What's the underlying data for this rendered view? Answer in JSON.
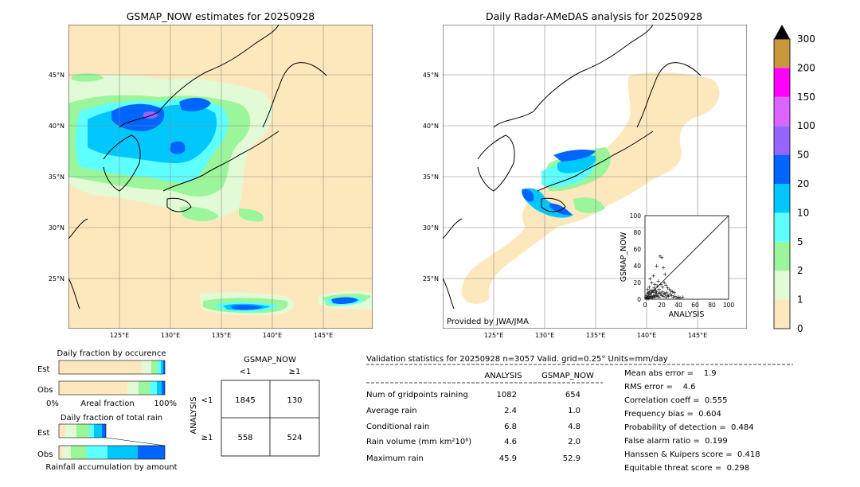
{
  "left_map": {
    "title": "GSMAP_NOW estimates for 20250928",
    "lat_labels": [
      "45°N",
      "40°N",
      "35°N",
      "30°N",
      "25°N"
    ],
    "lon_labels": [
      "125°E",
      "130°E",
      "135°E",
      "140°E",
      "145°E"
    ]
  },
  "right_map": {
    "title": "Daily Radar-AMeDAS analysis for 20250928",
    "lat_labels": [
      "45°N",
      "40°N",
      "35°N",
      "30°N",
      "25°N"
    ],
    "lon_labels": [
      "125°E",
      "130°E",
      "135°E",
      "140°E",
      "145°E"
    ],
    "credit": "Provided by JWA/JMA"
  },
  "colorbar": {
    "labels": [
      "0",
      "1",
      "2",
      "5",
      "10",
      "20",
      "50",
      "100",
      "150",
      "200",
      "300"
    ],
    "colors": [
      "#fde8bd",
      "#e2fbd6",
      "#9af59b",
      "#5effff",
      "#00c8ff",
      "#0064ff",
      "#9664ff",
      "#dc64ff",
      "#ff00ff",
      "#c8963c"
    ]
  },
  "occurrence": {
    "title": "Daily fraction by occurence",
    "rows": [
      "Est",
      "Obs"
    ],
    "axis_left": "0%",
    "axis_mid": "Areal fraction",
    "axis_right": "100%"
  },
  "total_rain": {
    "title": "Daily fraction of total rain",
    "rows": [
      "Est",
      "Obs"
    ],
    "caption": "Rainfall accumulation by amount"
  },
  "contingency": {
    "top_label": "GSMAP_NOW",
    "col_labels": [
      "<1",
      "≥1"
    ],
    "side_label": "ANALYSIS",
    "row_labels": [
      "<1",
      "≥1"
    ],
    "cells": [
      [
        "1845",
        "130"
      ],
      [
        "558",
        "524"
      ]
    ]
  },
  "validation": {
    "header": "Validation statistics for 20250928  n=3057 Valid. grid=0.25° Units=mm/day",
    "col_analysis": "ANALYSIS",
    "col_gsmap": "GSMAP_NOW",
    "rows": [
      {
        "label": "Num of gridpoints raining",
        "analysis": "1082",
        "gsmap": "654"
      },
      {
        "label": "Average rain",
        "analysis": "2.4",
        "gsmap": "1.0"
      },
      {
        "label": "Conditional rain",
        "analysis": "6.8",
        "gsmap": "4.8"
      },
      {
        "label": "Rain volume (mm km²10⁶)",
        "analysis": "4.6",
        "gsmap": "2.0"
      },
      {
        "label": "Maximum rain",
        "analysis": "45.9",
        "gsmap": "52.9"
      }
    ],
    "scores": [
      "Mean abs error =    1.9",
      "RMS error =    4.6",
      "Correlation coeff =  0.555",
      "Frequency bias =  0.604",
      "Probability of detection =  0.484",
      "False alarm ratio =  0.199",
      "Hanssen & Kuipers score =  0.418",
      "Equitable threat score =  0.298"
    ]
  },
  "chart_data": {
    "type": "scatter",
    "xlabel": "ANALYSIS",
    "ylabel": "GSMAP_NOW",
    "xlim": [
      0,
      100
    ],
    "ylim": [
      0,
      100
    ],
    "ticks": [
      "0",
      "20",
      "40",
      "60",
      "80",
      "100"
    ],
    "points": [
      [
        2,
        1
      ],
      [
        3,
        2
      ],
      [
        4,
        1
      ],
      [
        5,
        3
      ],
      [
        6,
        2
      ],
      [
        7,
        4
      ],
      [
        8,
        3
      ],
      [
        9,
        2
      ],
      [
        10,
        5
      ],
      [
        11,
        4
      ],
      [
        12,
        3
      ],
      [
        13,
        6
      ],
      [
        14,
        5
      ],
      [
        15,
        4
      ],
      [
        16,
        7
      ],
      [
        17,
        3
      ],
      [
        18,
        8
      ],
      [
        19,
        6
      ],
      [
        20,
        5
      ],
      [
        21,
        9
      ],
      [
        22,
        4
      ],
      [
        23,
        7
      ],
      [
        24,
        6
      ],
      [
        25,
        3
      ],
      [
        26,
        8
      ],
      [
        27,
        5
      ],
      [
        28,
        4
      ],
      [
        30,
        6
      ],
      [
        32,
        5
      ],
      [
        34,
        3
      ],
      [
        36,
        4
      ],
      [
        38,
        2
      ],
      [
        40,
        3
      ],
      [
        42,
        2
      ],
      [
        45,
        3
      ],
      [
        3,
        12
      ],
      [
        5,
        15
      ],
      [
        8,
        20
      ],
      [
        10,
        28
      ],
      [
        12,
        18
      ],
      [
        14,
        40
      ],
      [
        16,
        22
      ],
      [
        18,
        52
      ],
      [
        20,
        50
      ],
      [
        22,
        38
      ],
      [
        24,
        30
      ],
      [
        6,
        25
      ],
      [
        4,
        8
      ],
      [
        9,
        10
      ],
      [
        11,
        14
      ],
      [
        13,
        11
      ],
      [
        15,
        16
      ],
      [
        17,
        12
      ],
      [
        19,
        18
      ],
      [
        21,
        15
      ],
      [
        23,
        20
      ],
      [
        25,
        17
      ],
      [
        27,
        14
      ],
      [
        29,
        12
      ],
      [
        31,
        10
      ],
      [
        33,
        9
      ],
      [
        35,
        8
      ],
      [
        1,
        3
      ],
      [
        2,
        5
      ],
      [
        3,
        7
      ],
      [
        5,
        9
      ],
      [
        7,
        11
      ],
      [
        4,
        4
      ],
      [
        6,
        6
      ],
      [
        8,
        8
      ],
      [
        10,
        10
      ],
      [
        12,
        8
      ],
      [
        14,
        9
      ]
    ]
  }
}
